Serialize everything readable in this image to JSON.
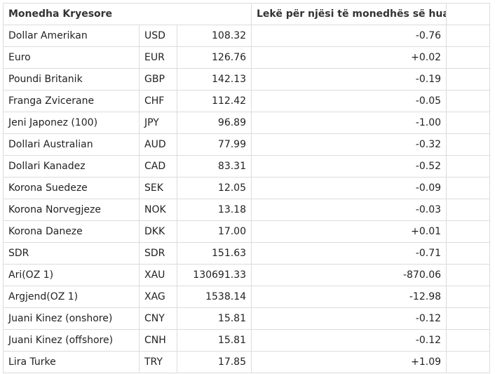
{
  "table": {
    "headers": {
      "currency": "Monedha Kryesore",
      "value": "Lekë për njësi të monedhës së huaj"
    },
    "rows": [
      {
        "name": "Dollar Amerikan",
        "code": "USD",
        "rate": "108.32",
        "change": "-0.76"
      },
      {
        "name": "Euro",
        "code": "EUR",
        "rate": "126.76",
        "change": "+0.02"
      },
      {
        "name": "Poundi Britanik",
        "code": "GBP",
        "rate": "142.13",
        "change": "-0.19"
      },
      {
        "name": "Franga Zvicerane",
        "code": "CHF",
        "rate": "112.42",
        "change": "-0.05"
      },
      {
        "name": "Jeni Japonez (100)",
        "code": "JPY",
        "rate": "96.89",
        "change": "-1.00"
      },
      {
        "name": "Dollari Australian",
        "code": "AUD",
        "rate": "77.99",
        "change": "-0.32"
      },
      {
        "name": "Dollari Kanadez",
        "code": "CAD",
        "rate": "83.31",
        "change": "-0.52"
      },
      {
        "name": "Korona Suedeze",
        "code": "SEK",
        "rate": "12.05",
        "change": "-0.09"
      },
      {
        "name": "Korona Norvegjeze",
        "code": "NOK",
        "rate": "13.18",
        "change": "-0.03"
      },
      {
        "name": "Korona Daneze",
        "code": "DKK",
        "rate": "17.00",
        "change": "+0.01"
      },
      {
        "name": "SDR",
        "code": "SDR",
        "rate": "151.63",
        "change": "-0.71"
      },
      {
        "name": "Ari(OZ 1)",
        "code": "XAU",
        "rate": "130691.33",
        "change": "-870.06"
      },
      {
        "name": "Argjend(OZ 1)",
        "code": "XAG",
        "rate": "1538.14",
        "change": "-12.98"
      },
      {
        "name": "Juani Kinez (onshore)",
        "code": "CNY",
        "rate": "15.81",
        "change": "-0.12"
      },
      {
        "name": "Juani Kinez (offshore)",
        "code": "CNH",
        "rate": "15.81",
        "change": "-0.12"
      },
      {
        "name": "Lira Turke",
        "code": "TRY",
        "rate": "17.85",
        "change": "+1.09"
      }
    ]
  }
}
